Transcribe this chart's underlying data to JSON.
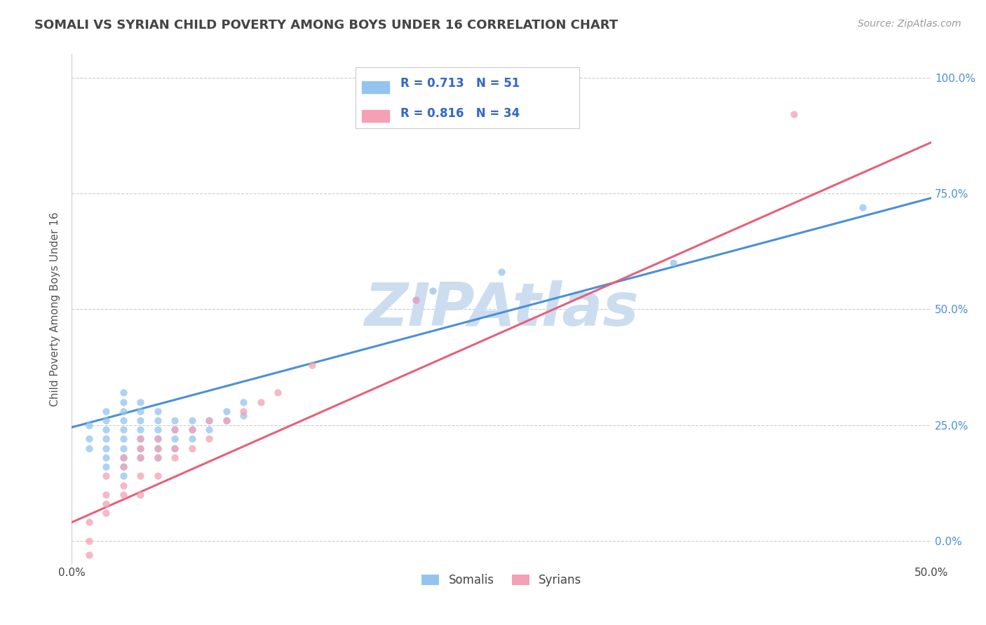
{
  "title": "SOMALI VS SYRIAN CHILD POVERTY AMONG BOYS UNDER 16 CORRELATION CHART",
  "source_text": "Source: ZipAtlas.com",
  "ylabel": "Child Poverty Among Boys Under 16",
  "xlim": [
    0.0,
    0.5
  ],
  "ylim": [
    -0.05,
    1.05
  ],
  "xticks": [
    0.0,
    0.1,
    0.2,
    0.3,
    0.4,
    0.5
  ],
  "yticks": [
    0.0,
    0.25,
    0.5,
    0.75,
    1.0
  ],
  "ytick_labels": [
    "0.0%",
    "25.0%",
    "50.0%",
    "75.0%",
    "100.0%"
  ],
  "xtick_labels": [
    "0.0%",
    "",
    "",
    "",
    "",
    "50.0%"
  ],
  "somali_color": "#93c4f0",
  "syrian_color": "#f4a0b5",
  "somali_line_color": "#4a90d9",
  "syrian_line_color": "#e8607a",
  "somali_R": 0.713,
  "somali_N": 51,
  "syrian_R": 0.816,
  "syrian_N": 34,
  "watermark": "ZIPAtlas",
  "watermark_color": "#ccddf0",
  "background_color": "#ffffff",
  "grid_color": "#cccccc",
  "title_color": "#444444",
  "axis_label_color": "#555555",
  "legend_text_color": "#3366cc",
  "somali_line_x0": 0.0,
  "somali_line_y0": 0.245,
  "somali_line_x1": 0.5,
  "somali_line_y1": 0.74,
  "syrian_line_x0": 0.0,
  "syrian_line_y0": 0.04,
  "syrian_line_x1": 0.5,
  "syrian_line_y1": 0.86,
  "somali_x": [
    0.01,
    0.01,
    0.01,
    0.02,
    0.02,
    0.02,
    0.02,
    0.02,
    0.02,
    0.02,
    0.03,
    0.03,
    0.03,
    0.03,
    0.03,
    0.03,
    0.03,
    0.03,
    0.03,
    0.03,
    0.04,
    0.04,
    0.04,
    0.04,
    0.04,
    0.04,
    0.04,
    0.05,
    0.05,
    0.05,
    0.05,
    0.05,
    0.05,
    0.06,
    0.06,
    0.06,
    0.06,
    0.07,
    0.07,
    0.07,
    0.08,
    0.08,
    0.09,
    0.09,
    0.1,
    0.1,
    0.2,
    0.21,
    0.25,
    0.35,
    0.46
  ],
  "somali_y": [
    0.2,
    0.22,
    0.25,
    0.16,
    0.18,
    0.2,
    0.22,
    0.24,
    0.26,
    0.28,
    0.14,
    0.16,
    0.18,
    0.2,
    0.22,
    0.24,
    0.26,
    0.28,
    0.3,
    0.32,
    0.18,
    0.2,
    0.22,
    0.24,
    0.26,
    0.28,
    0.3,
    0.18,
    0.2,
    0.22,
    0.24,
    0.26,
    0.28,
    0.2,
    0.22,
    0.24,
    0.26,
    0.22,
    0.24,
    0.26,
    0.24,
    0.26,
    0.26,
    0.28,
    0.27,
    0.3,
    0.52,
    0.54,
    0.58,
    0.6,
    0.72
  ],
  "syrian_x": [
    0.01,
    0.01,
    0.01,
    0.02,
    0.02,
    0.02,
    0.02,
    0.03,
    0.03,
    0.03,
    0.03,
    0.04,
    0.04,
    0.04,
    0.04,
    0.04,
    0.05,
    0.05,
    0.05,
    0.05,
    0.06,
    0.06,
    0.06,
    0.07,
    0.07,
    0.08,
    0.08,
    0.09,
    0.1,
    0.11,
    0.12,
    0.14,
    0.2,
    0.42
  ],
  "syrian_y": [
    -0.03,
    0.0,
    0.04,
    0.06,
    0.08,
    0.1,
    0.14,
    0.1,
    0.12,
    0.16,
    0.18,
    0.1,
    0.14,
    0.18,
    0.2,
    0.22,
    0.14,
    0.18,
    0.2,
    0.22,
    0.18,
    0.2,
    0.24,
    0.2,
    0.24,
    0.22,
    0.26,
    0.26,
    0.28,
    0.3,
    0.32,
    0.38,
    0.52,
    0.92
  ]
}
